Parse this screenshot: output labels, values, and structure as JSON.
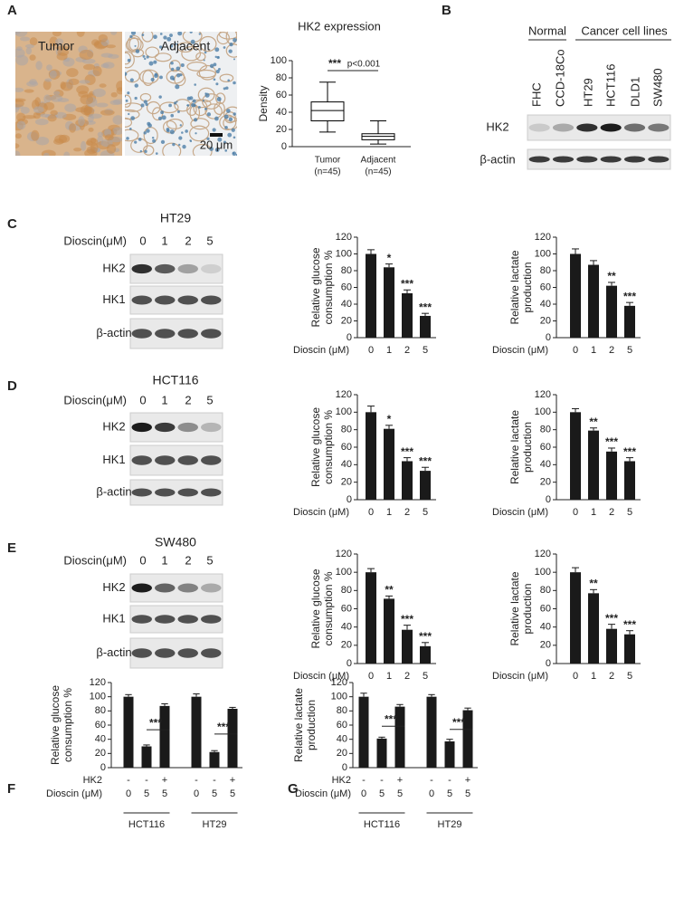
{
  "panel_labels": [
    "A",
    "B",
    "C",
    "D",
    "E",
    "F",
    "G"
  ],
  "histology": {
    "labels": [
      "Tumor",
      "Adjacent"
    ],
    "scale_bar": "20 μm"
  },
  "blot_B": {
    "groups": [
      "Normal",
      "Cancer cell lines"
    ],
    "lanes": [
      "FHC",
      "CCD-18Co",
      "HT29",
      "HCT116",
      "DLD1",
      "SW480"
    ],
    "rows": [
      "HK2",
      "β-actin"
    ]
  },
  "blots": [
    {
      "title": "HT29",
      "dose_label": "Dioscin(μM)",
      "lanes": [
        "0",
        "1",
        "2",
        "5"
      ],
      "rows": [
        "HK2",
        "HK1",
        "β-actin"
      ]
    },
    {
      "title": "HCT116",
      "dose_label": "Dioscin(μM)",
      "lanes": [
        "0",
        "1",
        "2",
        "5"
      ],
      "rows": [
        "HK2",
        "HK1",
        "β-actin"
      ]
    },
    {
      "title": "SW480",
      "dose_label": "Dioscin(μM)",
      "lanes": [
        "0",
        "1",
        "2",
        "5"
      ],
      "rows": [
        "HK2",
        "HK1",
        "β-actin"
      ]
    }
  ],
  "chart_data": [
    {
      "type": "box",
      "title": "HK2 expression",
      "ylabel": [
        "Density"
      ],
      "categories": [
        "Tumor",
        "Adjacent"
      ],
      "category_notes": [
        "(n=45)",
        "(n=45)"
      ],
      "whisker_low": [
        17,
        3
      ],
      "q1": [
        30,
        8
      ],
      "median": [
        42,
        12
      ],
      "q3": [
        52,
        15
      ],
      "whisker_high": [
        75,
        30
      ],
      "annotations": [
        "***",
        "p<0.001"
      ],
      "ylim": [
        0,
        100
      ],
      "yticks": [
        0,
        20,
        40,
        60,
        80,
        100
      ],
      "color": "#000000"
    },
    {
      "type": "bar",
      "ylabel": [
        "Relative glucose",
        "consumption %"
      ],
      "xlabel": "Dioscin (μM)",
      "categories": [
        "0",
        "1",
        "2",
        "5"
      ],
      "values": [
        100,
        84,
        53,
        26
      ],
      "errors": [
        5,
        4,
        4,
        3
      ],
      "value_annotations": [
        null,
        "*",
        "***",
        "***"
      ],
      "ylim": [
        0,
        120
      ],
      "yticks": [
        0,
        20,
        40,
        60,
        80,
        100,
        120
      ],
      "color": "#1a1a1a"
    },
    {
      "type": "bar",
      "ylabel": [
        "Relative lactate",
        "production"
      ],
      "xlabel": "Dioscin (μM)",
      "categories": [
        "0",
        "1",
        "2",
        "5"
      ],
      "values": [
        100,
        87,
        62,
        38
      ],
      "errors": [
        6,
        5,
        4,
        4
      ],
      "value_annotations": [
        null,
        null,
        "**",
        "***"
      ],
      "ylim": [
        0,
        120
      ],
      "yticks": [
        0,
        20,
        40,
        60,
        80,
        100,
        120
      ],
      "color": "#1a1a1a"
    },
    {
      "type": "bar",
      "ylabel": [
        "Relative glucose",
        "consumption %"
      ],
      "xlabel": "Dioscin (μM)",
      "categories": [
        "0",
        "1",
        "2",
        "5"
      ],
      "values": [
        100,
        81,
        44,
        33
      ],
      "errors": [
        7,
        4,
        4,
        4
      ],
      "value_annotations": [
        null,
        "*",
        "***",
        "***"
      ],
      "ylim": [
        0,
        120
      ],
      "yticks": [
        0,
        20,
        40,
        60,
        80,
        100,
        120
      ],
      "color": "#1a1a1a"
    },
    {
      "type": "bar",
      "ylabel": [
        "Relative lactate",
        "production"
      ],
      "xlabel": "Dioscin (μM)",
      "categories": [
        "0",
        "1",
        "2",
        "5"
      ],
      "values": [
        100,
        79,
        55,
        44
      ],
      "errors": [
        4,
        3,
        4,
        4
      ],
      "value_annotations": [
        null,
        "**",
        "***",
        "***"
      ],
      "ylim": [
        0,
        120
      ],
      "yticks": [
        0,
        20,
        40,
        60,
        80,
        100,
        120
      ],
      "color": "#1a1a1a"
    },
    {
      "type": "bar",
      "ylabel": [
        "Relative glucose",
        "consumption %"
      ],
      "xlabel": "Dioscin (μM)",
      "categories": [
        "0",
        "1",
        "2",
        "5"
      ],
      "values": [
        100,
        71,
        37,
        19
      ],
      "errors": [
        4,
        3,
        5,
        4
      ],
      "value_annotations": [
        null,
        "**",
        "***",
        "***"
      ],
      "ylim": [
        0,
        120
      ],
      "yticks": [
        0,
        20,
        40,
        60,
        80,
        100,
        120
      ],
      "color": "#1a1a1a"
    },
    {
      "type": "bar",
      "ylabel": [
        "Relative lactate",
        "production"
      ],
      "xlabel": "Dioscin (μM)",
      "categories": [
        "0",
        "1",
        "2",
        "5"
      ],
      "values": [
        100,
        77,
        38,
        32
      ],
      "errors": [
        5,
        4,
        5,
        4
      ],
      "value_annotations": [
        null,
        "**",
        "***",
        "***"
      ],
      "ylim": [
        0,
        120
      ],
      "yticks": [
        0,
        20,
        40,
        60,
        80,
        100,
        120
      ],
      "color": "#1a1a1a"
    },
    {
      "type": "grouped_bar",
      "ylabel": [
        "Relative glucose",
        "consumption %"
      ],
      "xlabel": "Dioscin (μM)",
      "categories": [
        "0",
        "5",
        "5",
        "0",
        "5",
        "5"
      ],
      "extra_rows": [
        {
          "name": "HK2",
          "labels": [
            "-",
            "-",
            "+",
            "-",
            "-",
            "+"
          ]
        }
      ],
      "groups": [
        "HCT116",
        "HT29"
      ],
      "values": [
        100,
        30,
        87,
        100,
        22,
        83
      ],
      "errors": [
        3,
        2,
        3,
        4,
        2,
        2
      ],
      "brackets": [
        null,
        null,
        "***",
        null,
        null,
        "***"
      ],
      "ylim": [
        0,
        120
      ],
      "yticks": [
        0,
        20,
        40,
        60,
        80,
        100,
        120
      ],
      "color": "#1a1a1a"
    },
    {
      "type": "grouped_bar",
      "ylabel": [
        "Relative lactate",
        "production"
      ],
      "xlabel": "Dioscin (μM)",
      "categories": [
        "0",
        "5",
        "5",
        "0",
        "5",
        "5"
      ],
      "extra_rows": [
        {
          "name": "HK2",
          "labels": [
            "-",
            "-",
            "+",
            "-",
            "-",
            "+"
          ]
        }
      ],
      "groups": [
        "HCT116",
        "HT29"
      ],
      "values": [
        100,
        41,
        86,
        100,
        37,
        81
      ],
      "errors": [
        5,
        2,
        3,
        3,
        3,
        3
      ],
      "brackets": [
        null,
        null,
        "***",
        null,
        null,
        "***"
      ],
      "ylim": [
        0,
        120
      ],
      "yticks": [
        0,
        20,
        40,
        60,
        80,
        100,
        120
      ],
      "color": "#1a1a1a"
    }
  ]
}
